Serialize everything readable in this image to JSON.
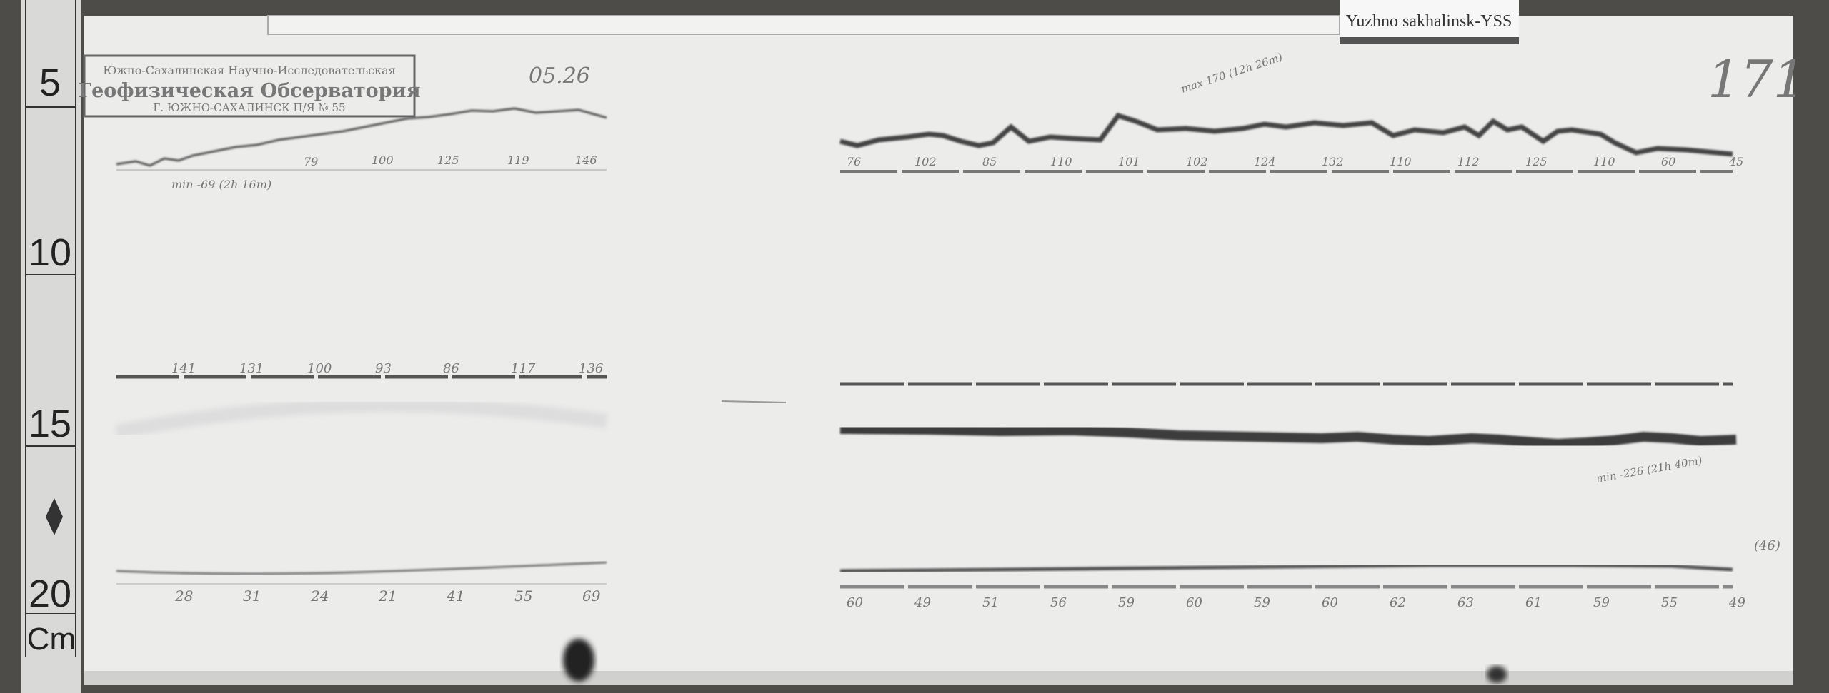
{
  "station_label": "Yuzhno sakhalinsk-YSS",
  "sheet_number": "171",
  "date_note": "05.26",
  "stamp": {
    "line1": "Южно-Сахалинская Научно-Исследовательская",
    "line2": "Геофизическая Обсерватория",
    "line3": "Г. ЮЖНО-САХАЛИНСК П/Я № 55"
  },
  "ruler": {
    "marks": [
      "5",
      "10",
      "15",
      "20"
    ],
    "unit": "Cm"
  },
  "annotations": {
    "left_min": "min -69 (2h 16m)",
    "right_max": "max 170 (12h 26m)",
    "right_min": "min -226 (21h 40m)",
    "right_side": "(46)"
  },
  "top_right_ticks": [
    "76",
    "102",
    "85",
    "110",
    "101",
    "102",
    "124",
    "132",
    "110",
    "112",
    "125",
    "110",
    "60",
    "45"
  ],
  "top_left_ticks": [
    "",
    "",
    "79",
    "100",
    "125",
    "119",
    "146"
  ],
  "mid_left_ticks": [
    "141",
    "131",
    "100",
    "93",
    "86",
    "117",
    "136"
  ],
  "bottom_left_ticks": [
    "28",
    "31",
    "24",
    "21",
    "41",
    "55",
    "69"
  ],
  "bottom_right_ticks": [
    "60",
    "49",
    "51",
    "56",
    "59",
    "60",
    "59",
    "60",
    "62",
    "63",
    "61",
    "59",
    "55",
    "49"
  ],
  "colors": {
    "paper": "#ebebea",
    "trace": "#3c3c3c",
    "background": "#4a4a48"
  }
}
